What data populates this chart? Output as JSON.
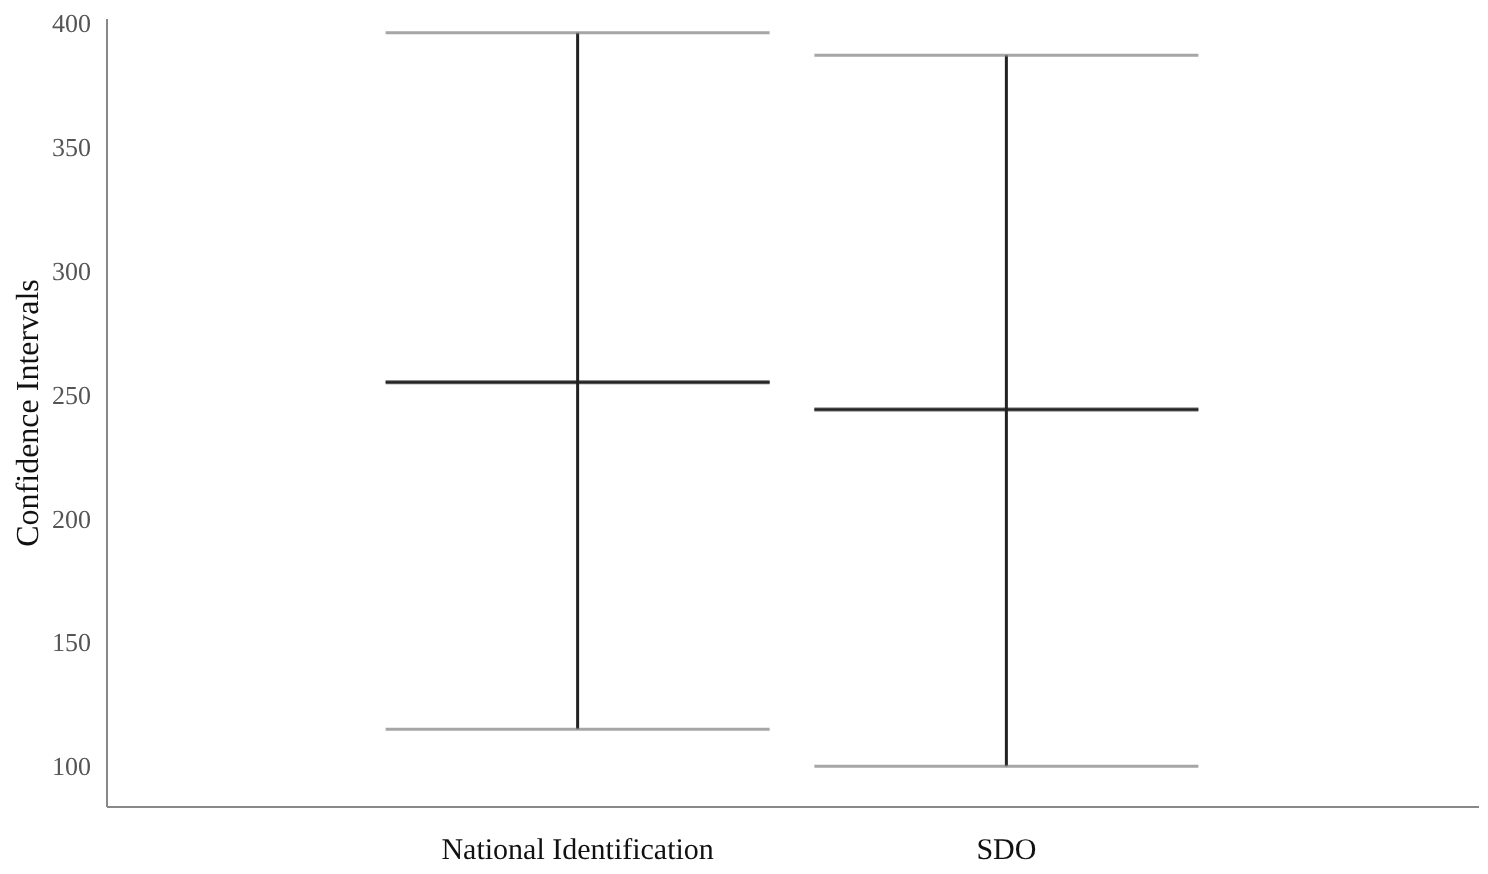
{
  "chart_data": {
    "type": "box",
    "ylabel": "Confidence Intervals",
    "categories": [
      "National Identification",
      "SDO"
    ],
    "boxes": [
      {
        "low": 115,
        "q1": 255,
        "median": 255,
        "q3": 255,
        "high": 396
      },
      {
        "low": 100,
        "q1": 244,
        "median": 244,
        "q3": 244,
        "high": 387
      }
    ],
    "color": "#222222",
    "ylim": [
      84,
      402
    ],
    "yticks": [
      100,
      150,
      200,
      250,
      300,
      350,
      400
    ],
    "grid": false
  }
}
